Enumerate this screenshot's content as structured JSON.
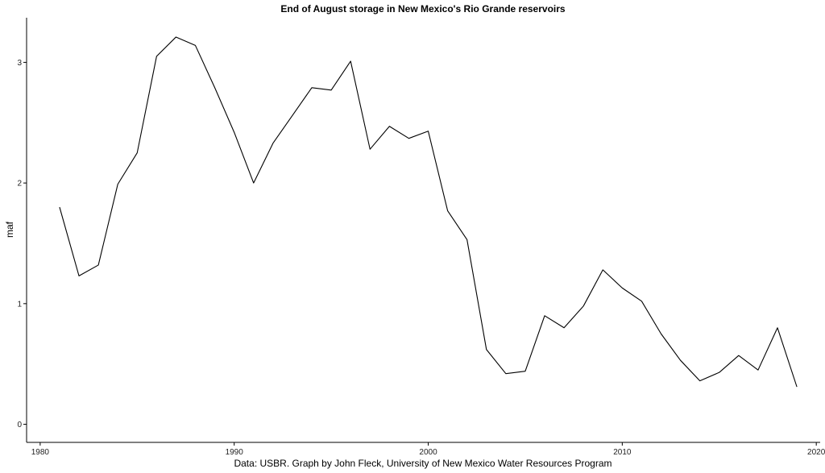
{
  "chart_data": {
    "type": "line",
    "title": "End of August storage in New Mexico's Rio Grande reservoirs",
    "xlabel": "Data: USBR. Graph by John Fleck, University of New Mexico Water Resources Program",
    "ylabel": "maf",
    "xlim": [
      1979.3,
      2020.2
    ],
    "ylim": [
      -0.15,
      3.37
    ],
    "xticks": [
      1980,
      1990,
      2000,
      2010,
      2020
    ],
    "yticks": [
      0,
      1,
      2,
      3
    ],
    "grid": false,
    "series": [
      {
        "x": [
          1981,
          1982,
          1983,
          1984,
          1985,
          1986,
          1987,
          1988,
          1989,
          1990,
          1991,
          1992,
          1993,
          1994,
          1995,
          1996,
          1997,
          1998,
          1999,
          2000,
          2001,
          2002,
          2003,
          2004,
          2005,
          2006,
          2007,
          2008,
          2009,
          2010,
          2011,
          2012,
          2013,
          2014,
          2015,
          2016,
          2017,
          2018,
          2019
        ],
        "values": [
          1.8,
          1.23,
          1.32,
          1.99,
          2.25,
          3.05,
          3.21,
          3.14,
          2.79,
          2.42,
          2.0,
          2.33,
          2.56,
          2.79,
          2.77,
          3.01,
          2.28,
          2.47,
          2.37,
          2.43,
          1.77,
          1.53,
          0.62,
          0.42,
          0.44,
          0.9,
          0.8,
          0.98,
          1.28,
          1.13,
          1.02,
          0.75,
          0.53,
          0.36,
          0.43,
          0.57,
          0.45,
          0.8,
          0.31
        ]
      }
    ]
  }
}
